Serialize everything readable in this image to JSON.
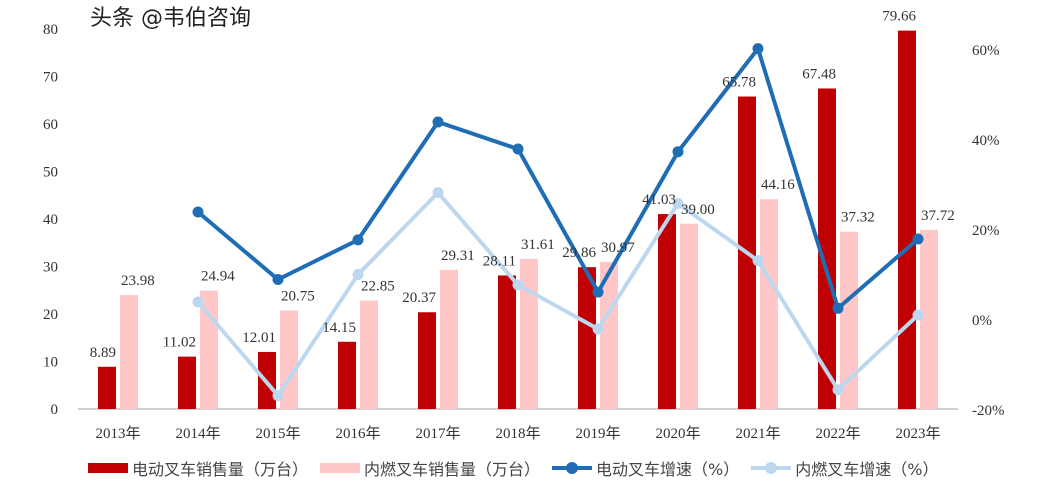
{
  "chart_data": {
    "type": "bar",
    "title": "",
    "categories": [
      "2013年",
      "2014年",
      "2015年",
      "2016年",
      "2017年",
      "2018年",
      "2019年",
      "2020年",
      "2021年",
      "2022年",
      "2023年"
    ],
    "series": [
      {
        "name": "电动叉车销售量（万台）",
        "type": "bar",
        "axis": "left",
        "color": "#C00000",
        "values": [
          8.89,
          11.02,
          12.01,
          14.15,
          20.37,
          28.11,
          29.86,
          41.03,
          65.78,
          67.48,
          79.66
        ],
        "labels": [
          "8.89",
          "11.02",
          "12.01",
          "14.15",
          "20.37",
          "28.11",
          "29.86",
          "41.03",
          "65.78",
          "67.48",
          "79.66"
        ]
      },
      {
        "name": "内燃叉车销售量（万台）",
        "type": "bar",
        "axis": "left",
        "color": "#FFC7C7",
        "values": [
          23.98,
          24.94,
          20.75,
          22.85,
          29.31,
          31.61,
          30.97,
          39.0,
          44.16,
          37.32,
          37.72
        ],
        "labels": [
          "23.98",
          "24.94",
          "20.75",
          "22.85",
          "29.31",
          "31.61",
          "30.97",
          "39.00",
          "44.16",
          "37.32",
          "37.72"
        ]
      },
      {
        "name": "电动叉车增速（%）",
        "type": "line",
        "axis": "right",
        "color": "#1F6DB5",
        "values": [
          null,
          24.0,
          9.0,
          17.8,
          44.0,
          38.0,
          6.2,
          37.4,
          60.3,
          2.6,
          18.0
        ]
      },
      {
        "name": "内燃叉车增速（%）",
        "type": "line",
        "axis": "right",
        "color": "#BDD7EE",
        "values": [
          null,
          4.0,
          -16.8,
          10.1,
          28.3,
          7.8,
          -2.0,
          25.9,
          13.2,
          -15.5,
          1.1
        ]
      }
    ],
    "left_axis": {
      "ylim": [
        0,
        80
      ],
      "ticks": [
        "0",
        "10",
        "20",
        "30",
        "40",
        "50",
        "60",
        "70",
        "80"
      ]
    },
    "right_axis": {
      "ylim": [
        -20,
        60
      ],
      "ticks": [
        "-20%",
        "0%",
        "20%",
        "40%",
        "60%"
      ]
    },
    "legend_placement": "bottom",
    "grid": false
  },
  "watermark": "头条 @韦伯咨询"
}
